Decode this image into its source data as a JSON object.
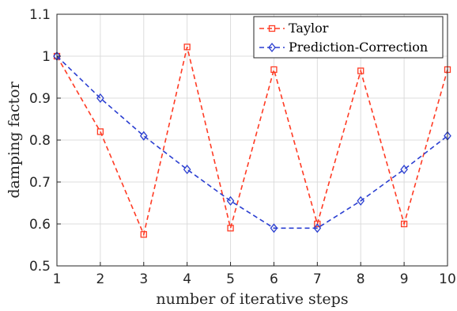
{
  "chart_data": {
    "type": "line",
    "xlabel": "number of iterative steps",
    "ylabel": "damping factor",
    "xlim": [
      1,
      10
    ],
    "ylim": [
      0.5,
      1.1
    ],
    "x_ticks": [
      "1",
      "2",
      "3",
      "4",
      "5",
      "6",
      "7",
      "8",
      "9",
      "10"
    ],
    "y_ticks": [
      "0.5",
      "0.6",
      "0.7",
      "0.8",
      "0.9",
      "1",
      "1.1"
    ],
    "grid": true,
    "legend_position": "top-right",
    "x": [
      1,
      2,
      3,
      4,
      5,
      6,
      7,
      8,
      9,
      10
    ],
    "series": [
      {
        "name": "Taylor",
        "color": "#ff3b24",
        "marker": "square",
        "line_style": "dashed",
        "values": [
          1.0,
          0.82,
          0.575,
          1.022,
          0.59,
          0.968,
          0.6,
          0.965,
          0.6,
          0.968
        ]
      },
      {
        "name": "Prediction-Correction",
        "color": "#2b3fd1",
        "marker": "diamond",
        "line_style": "dashed",
        "values": [
          1.0,
          0.9,
          0.81,
          0.73,
          0.655,
          0.59,
          0.59,
          0.655,
          0.73,
          0.81
        ]
      }
    ]
  }
}
